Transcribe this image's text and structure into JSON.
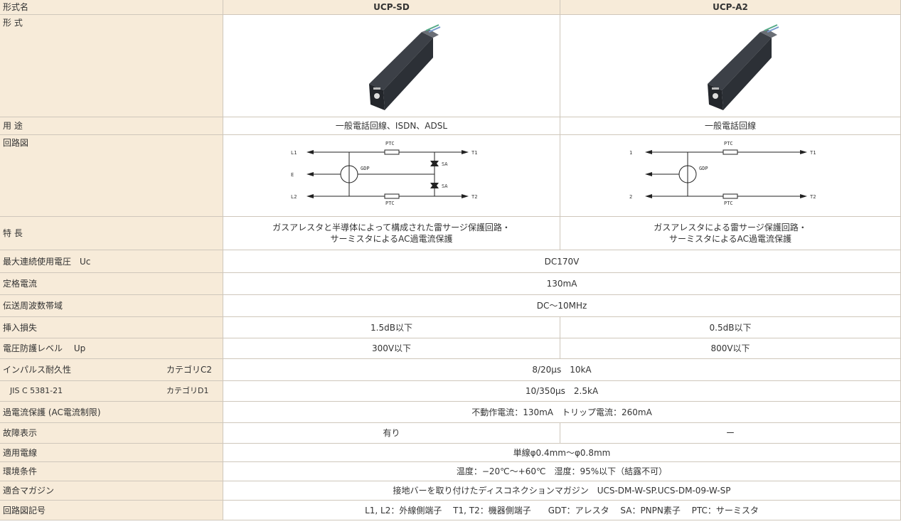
{
  "header": {
    "label": "形式名",
    "models": [
      "UCP-SD",
      "UCP-A2"
    ]
  },
  "form_label": "形 式",
  "usage": {
    "label": "用 途",
    "values": [
      "一般電話回線、ISDN、ADSL",
      "一般電話回線"
    ]
  },
  "circuit": {
    "label": "回路図",
    "diagrams": [
      {
        "l1": "L1",
        "e": "E",
        "l2": "L2",
        "t1": "T1",
        "t2": "T2",
        "ptc_top": "PTC",
        "ptc_bottom": "PTC",
        "gdp": "GDP",
        "sa_top": "SA",
        "sa_bottom": "SA"
      },
      {
        "l1": "1",
        "l2": "2",
        "t1": "T1",
        "t2": "T2",
        "ptc_top": "PTC",
        "ptc_bottom": "PTC",
        "gdp": "GDP"
      }
    ]
  },
  "features": {
    "label": "特 長",
    "values": [
      [
        "ガスアレスタと半導体によって構成された雷サージ保護回路・",
        "サーミスタによるAC過電流保護"
      ],
      [
        "ガスアレスタによる雷サージ保護回路・",
        "サーミスタによるAC過電流保護"
      ]
    ]
  },
  "rows": [
    {
      "label": "最大連続使用電圧　Uc",
      "value": "DC170V"
    },
    {
      "label": "定格電流",
      "value": "130mA"
    },
    {
      "label": "伝送周波数帯域",
      "value": "DC〜10MHz"
    },
    {
      "label": "挿入損失",
      "values": [
        "1.5dB以下",
        "0.5dB以下"
      ]
    },
    {
      "label": "電圧防護レベル　 Up",
      "values": [
        "300V以下",
        "800V以下"
      ]
    },
    {
      "label": "インパルス耐久性",
      "sub": "カテゴリC2",
      "value": "8/20μs　10kA"
    },
    {
      "label": "JIS C 5381-21",
      "sub": "カテゴリD1",
      "value": "10/350μs　2.5kA"
    },
    {
      "label": "過電流保護 (AC電流制限)",
      "value": "不動作電流：130mA　トリップ電流：260mA"
    },
    {
      "label": "故障表示",
      "values": [
        "有り",
        "ー"
      ]
    },
    {
      "label": "適用電線",
      "value": "単線φ0.4mm〜φ0.8mm"
    },
    {
      "label": "環境条件",
      "value": "温度：−20℃〜+60℃　湿度：95%以下（結露不可）"
    },
    {
      "label": "適合マガジン",
      "value": "接地バーを取り付けたディスコネクションマガジン　UCS-DM-W-SP.UCS-DM-09-W-SP"
    },
    {
      "label": "回路図記号",
      "value": "L1, L2：外線側端子　 T1, T2：機器側端子　　GDT：アレスタ　 SA：PNPN素子　 PTC：サーミスタ"
    }
  ]
}
